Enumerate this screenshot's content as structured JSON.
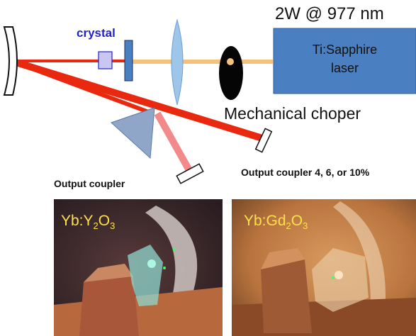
{
  "labels": {
    "pump": "2W @ 977 nm",
    "laser_line1": "Ti:Sapphire",
    "laser_line2": "laser",
    "crystal": "crystal",
    "chopper": "Mechanical choper",
    "output_coupler_left": "Output coupler",
    "output_coupler_right": "Output coupler 4, 6, or 10%"
  },
  "photos": {
    "left": {
      "prefix": "Yb:Y",
      "sub1": "2",
      "mid": "O",
      "sub2": "3"
    },
    "right": {
      "prefix": "Yb:Gd",
      "sub1": "2",
      "mid": "O",
      "sub2": "3"
    }
  },
  "colors": {
    "laser_box": "#4a7fc1",
    "beam_red": "#e8280f",
    "beam_pink": "#f28a8a",
    "pump_beam": "#f4c27a",
    "crystal_label": "#2222cc",
    "lens": "#9ec5ea",
    "prism": "#8fa6c8",
    "photo_label": "#ffe14d"
  }
}
